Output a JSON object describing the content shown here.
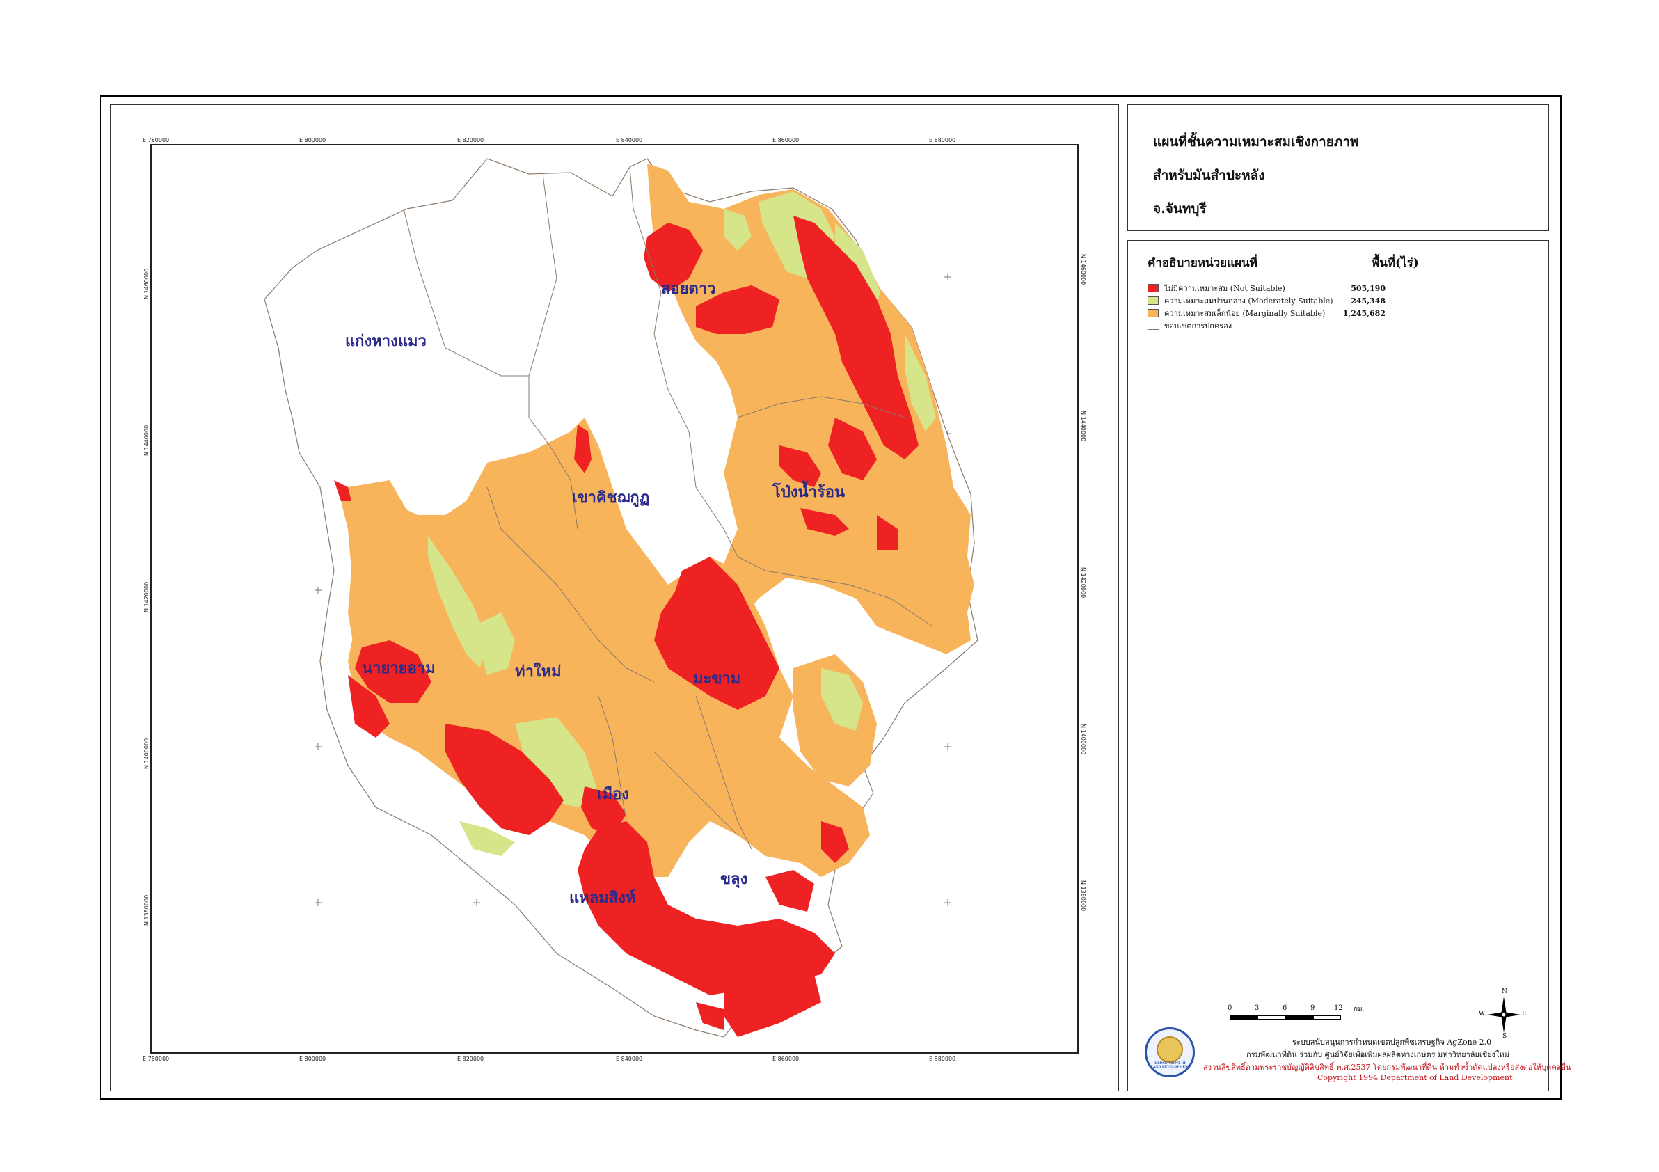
{
  "title": {
    "line1": "แผนที่ชั้นความเหมาะสมเชิงกายภาพ",
    "line2": "สำหรับมันสำปะหลัง",
    "line3": "จ.จันทบุรี"
  },
  "legend": {
    "header_left": "คำอธิบายหน่วยแผนที่",
    "header_right": "พื้นที่(ไร่)",
    "items": [
      {
        "label": "ไม่มีความเหมาะสม (Not Suitable)",
        "area": "505,190",
        "color": "#ee2222"
      },
      {
        "label": "ความเหมาะสมปานกลาง (Moderately Suitable)",
        "area": "245,348",
        "color": "#d6e58a"
      },
      {
        "label": "ความเหมาะสมเล็กน้อย (Marginally Suitable)",
        "area": "1,245,682",
        "color": "#f7b45a"
      }
    ],
    "boundary_label": "ขอบเขตการปกครอง"
  },
  "grid": {
    "top_ticks": [
      "E 780000",
      "E 800000",
      "E 820000",
      "E 840000",
      "E 860000",
      "E 880000"
    ],
    "bottom_ticks": [
      "E 780000",
      "E 800000",
      "E 820000",
      "E 840000",
      "E 860000",
      "E 880000"
    ],
    "left_ticks": [
      "N 1460000",
      "N 1440000",
      "N 1420000",
      "N 1400000",
      "N 1380000"
    ],
    "right_ticks": [
      "N 1460000",
      "N 1440000",
      "N 1420000",
      "N 1400000",
      "N 1380000"
    ]
  },
  "districts": {
    "soi_dao": "สอยดาว",
    "kaeng_hang_maeo": "แก่งหางแมว",
    "khao_khitchakut": "เขาคิชฌกูฏ",
    "pong_nam_ron": "โป่งน้ำร้อน",
    "na_yai_am": "นายายอาม",
    "tha_mai": "ท่าใหม่",
    "makham": "มะขาม",
    "mueang": "เมือง",
    "khlung": "ขลุง",
    "laem_sing": "แหลมสิงห์"
  },
  "scale": {
    "ticks": [
      "0",
      "3",
      "6",
      "9",
      "12"
    ],
    "unit": "กม."
  },
  "compass": {
    "n": "N",
    "s": "S",
    "e": "E",
    "w": "W"
  },
  "credits": {
    "line1": "ระบบสนับสนุนการกำหนดเขตปลูกพืชเศรษฐกิจ AgZone 2.0",
    "line2": "กรมพัฒนาที่ดิน ร่วมกับ ศูนย์วิจัยเพื่อเพิ่มผลผลิตทางเกษตร มหาวิทยาลัยเชียงใหม่",
    "line3": "สงวนลิขสิทธิ์ตามพระราชบัญญัติลิขสิทธิ์ พ.ศ.2537 โดยกรมพัฒนาที่ดิน ห้ามทำซ้ำดัดแปลงหรือส่งต่อให้บุคคลอื่น",
    "line4": "Copyright 1994  Department of Land Development"
  },
  "logo_text": "DEPARTMENT OF LAND DEVELOPMENT",
  "colors": {
    "not_suitable": "#ee2222",
    "moderately": "#d6e58a",
    "marginally": "#f7b45a",
    "district_label": "#2a2a8a",
    "boundary": "#8b7a6a"
  }
}
